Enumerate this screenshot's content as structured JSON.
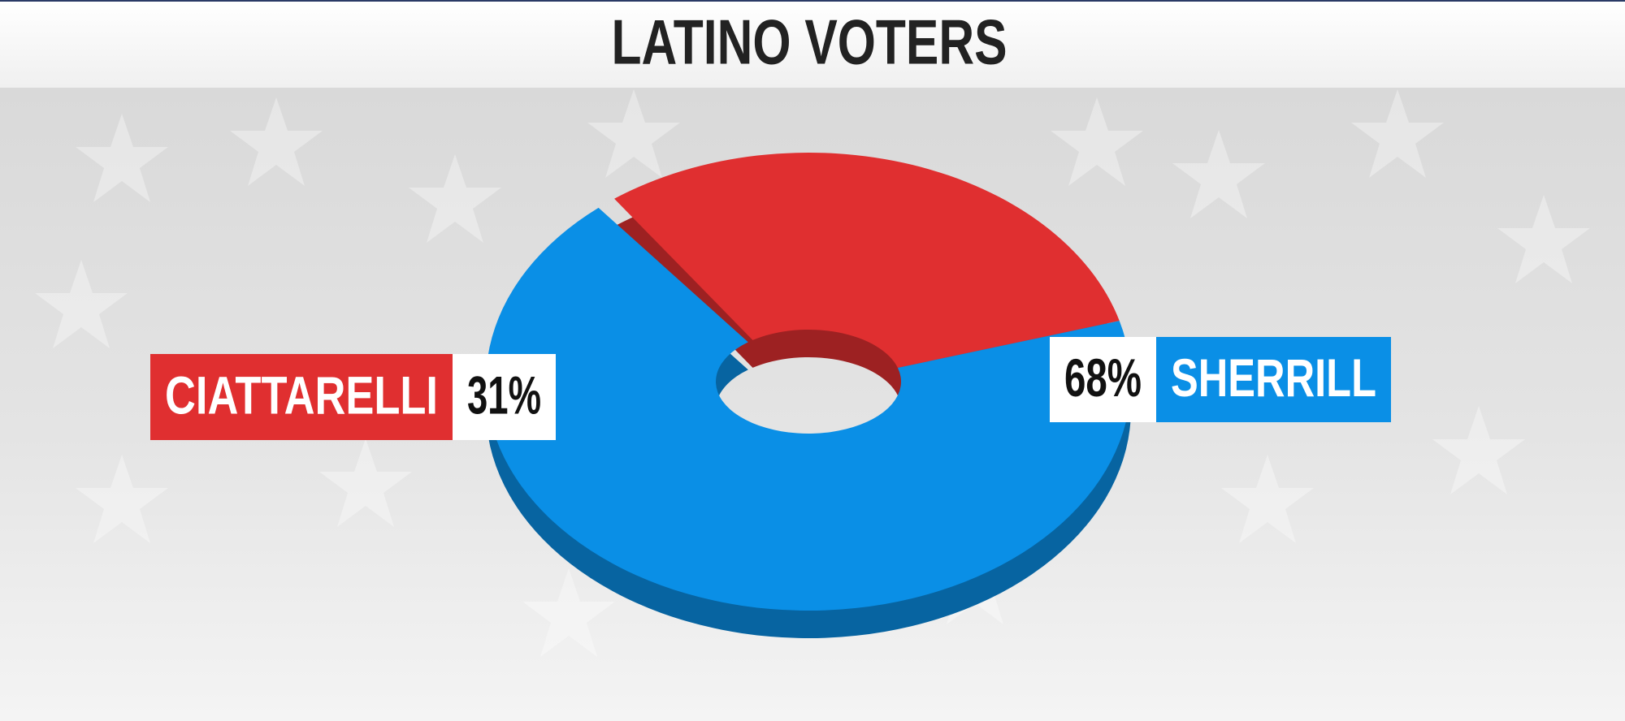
{
  "chart_data": {
    "type": "pie",
    "donut": true,
    "title": "LATINO VOTERS",
    "categories": [
      "CIATTARELLI",
      "SHERRILL"
    ],
    "values": [
      31,
      68
    ],
    "value_labels": [
      "31%",
      "68%"
    ],
    "colors": [
      "#e02f30",
      "#0a8fe6"
    ]
  }
}
